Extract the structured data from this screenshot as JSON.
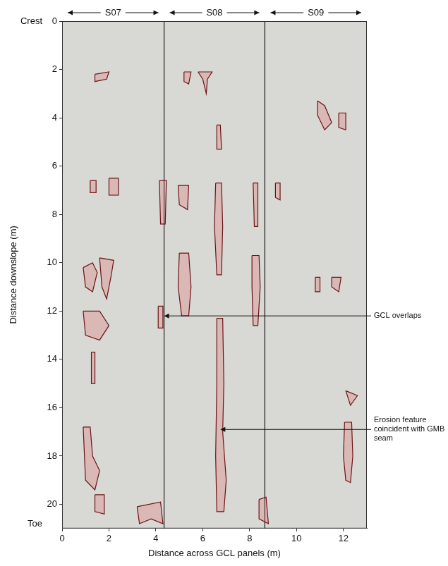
{
  "chart_data": {
    "type": "scatter",
    "x_label": "Distance across GCL panels (m)",
    "y_label": "Distance downslope (m)",
    "xlim": [
      0,
      13
    ],
    "ylim": [
      0,
      21
    ],
    "xticks": [
      0,
      2,
      4,
      6,
      8,
      10,
      12
    ],
    "yticks": [
      0,
      2,
      4,
      6,
      8,
      10,
      12,
      14,
      16,
      18,
      20
    ],
    "grid": false,
    "color": "#6b1414",
    "y_end_labels": [
      {
        "value": 0,
        "label": "Crest"
      },
      {
        "value": 20.8,
        "label": "Toe"
      }
    ],
    "panels": [
      {
        "label": "S07",
        "from": 0,
        "to": 4.35
      },
      {
        "label": "S08",
        "from": 4.35,
        "to": 8.65
      },
      {
        "label": "S09",
        "from": 8.65,
        "to": 13
      }
    ],
    "panel_boundaries": [
      4.35,
      8.65
    ],
    "annotations": [
      {
        "text": "GCL overlaps",
        "x": 4.35,
        "y": 12.2
      },
      {
        "text": "Erosion feature coincident with GMB seam",
        "x": 6.75,
        "y": 16.9
      }
    ],
    "erosion_features": [
      [
        [
          6.6,
          12.3
        ],
        [
          6.85,
          12.3
        ],
        [
          6.9,
          15
        ],
        [
          6.85,
          17
        ],
        [
          7.0,
          19
        ],
        [
          6.9,
          20.3
        ],
        [
          6.6,
          20.3
        ],
        [
          6.55,
          18
        ],
        [
          6.6,
          15
        ]
      ],
      [
        [
          6.55,
          6.7
        ],
        [
          6.8,
          6.7
        ],
        [
          6.85,
          8.5
        ],
        [
          6.8,
          10.5
        ],
        [
          6.6,
          10.5
        ],
        [
          6.5,
          8.5
        ]
      ],
      [
        [
          6.6,
          4.3
        ],
        [
          6.75,
          4.3
        ],
        [
          6.8,
          5.3
        ],
        [
          6.6,
          5.3
        ]
      ],
      [
        [
          8.1,
          9.7
        ],
        [
          8.4,
          9.7
        ],
        [
          8.45,
          11
        ],
        [
          8.35,
          12.6
        ],
        [
          8.15,
          12.6
        ],
        [
          8.1,
          11
        ]
      ],
      [
        [
          8.15,
          6.7
        ],
        [
          8.35,
          6.7
        ],
        [
          8.35,
          8.5
        ],
        [
          8.2,
          8.5
        ]
      ],
      [
        [
          5.0,
          9.6
        ],
        [
          5.4,
          9.6
        ],
        [
          5.5,
          11
        ],
        [
          5.4,
          12.2
        ],
        [
          5.1,
          12.2
        ],
        [
          4.95,
          11
        ]
      ],
      [
        [
          4.95,
          6.8
        ],
        [
          5.4,
          6.8
        ],
        [
          5.35,
          7.8
        ],
        [
          5.0,
          7.6
        ]
      ],
      [
        [
          4.15,
          6.6
        ],
        [
          4.45,
          6.6
        ],
        [
          4.4,
          8.4
        ],
        [
          4.2,
          8.4
        ]
      ],
      [
        [
          4.1,
          11.8
        ],
        [
          4.3,
          11.8
        ],
        [
          4.3,
          12.7
        ],
        [
          4.1,
          12.7
        ]
      ],
      [
        [
          0.9,
          10.2
        ],
        [
          1.3,
          10.0
        ],
        [
          1.5,
          10.4
        ],
        [
          1.3,
          11.2
        ],
        [
          1.0,
          11.0
        ]
      ],
      [
        [
          1.6,
          9.8
        ],
        [
          2.2,
          9.9
        ],
        [
          2.1,
          10.5
        ],
        [
          1.9,
          11.5
        ],
        [
          1.7,
          11.0
        ]
      ],
      [
        [
          0.9,
          12.0
        ],
        [
          1.6,
          12.0
        ],
        [
          2.0,
          12.6
        ],
        [
          1.6,
          13.2
        ],
        [
          1.0,
          13.0
        ]
      ],
      [
        [
          0.9,
          16.8
        ],
        [
          1.2,
          16.8
        ],
        [
          1.3,
          18
        ],
        [
          1.6,
          18.6
        ],
        [
          1.4,
          19.4
        ],
        [
          1.0,
          19.0
        ]
      ],
      [
        [
          1.4,
          19.6
        ],
        [
          1.8,
          19.6
        ],
        [
          1.8,
          20.4
        ],
        [
          1.4,
          20.3
        ]
      ],
      [
        [
          3.2,
          20.1
        ],
        [
          4.2,
          19.9
        ],
        [
          4.3,
          20.8
        ],
        [
          3.8,
          20.6
        ],
        [
          3.3,
          20.8
        ]
      ],
      [
        [
          1.25,
          13.7
        ],
        [
          1.4,
          13.7
        ],
        [
          1.4,
          15.0
        ],
        [
          1.25,
          15.0
        ]
      ],
      [
        [
          1.4,
          2.2
        ],
        [
          2.0,
          2.1
        ],
        [
          1.9,
          2.4
        ],
        [
          1.4,
          2.5
        ]
      ],
      [
        [
          1.2,
          6.6
        ],
        [
          1.45,
          6.6
        ],
        [
          1.45,
          7.1
        ],
        [
          1.2,
          7.1
        ]
      ],
      [
        [
          2.0,
          6.5
        ],
        [
          2.4,
          6.5
        ],
        [
          2.4,
          7.2
        ],
        [
          2.0,
          7.2
        ]
      ],
      [
        [
          5.8,
          2.1
        ],
        [
          6.4,
          2.1
        ],
        [
          6.2,
          2.4
        ],
        [
          6.15,
          3.0
        ],
        [
          6.0,
          2.4
        ]
      ],
      [
        [
          5.2,
          2.1
        ],
        [
          5.5,
          2.1
        ],
        [
          5.4,
          2.6
        ],
        [
          5.2,
          2.5
        ]
      ],
      [
        [
          10.9,
          3.3
        ],
        [
          11.2,
          3.5
        ],
        [
          11.5,
          4.2
        ],
        [
          11.2,
          4.5
        ],
        [
          10.9,
          3.9
        ]
      ],
      [
        [
          11.8,
          3.8
        ],
        [
          12.1,
          3.8
        ],
        [
          12.1,
          4.5
        ],
        [
          11.8,
          4.4
        ]
      ],
      [
        [
          12.05,
          16.6
        ],
        [
          12.35,
          16.6
        ],
        [
          12.4,
          18
        ],
        [
          12.3,
          19.1
        ],
        [
          12.1,
          19.0
        ],
        [
          12.0,
          18
        ]
      ],
      [
        [
          12.1,
          15.3
        ],
        [
          12.6,
          15.5
        ],
        [
          12.3,
          15.9
        ]
      ],
      [
        [
          10.8,
          10.6
        ],
        [
          11.0,
          10.6
        ],
        [
          11.0,
          11.2
        ],
        [
          10.8,
          11.2
        ]
      ],
      [
        [
          11.5,
          10.6
        ],
        [
          11.9,
          10.6
        ],
        [
          11.8,
          11.2
        ],
        [
          11.5,
          11.0
        ]
      ],
      [
        [
          9.1,
          6.7
        ],
        [
          9.3,
          6.7
        ],
        [
          9.3,
          7.4
        ],
        [
          9.1,
          7.3
        ]
      ],
      [
        [
          8.4,
          19.8
        ],
        [
          8.7,
          19.7
        ],
        [
          8.8,
          20.8
        ],
        [
          8.4,
          20.6
        ]
      ]
    ]
  }
}
